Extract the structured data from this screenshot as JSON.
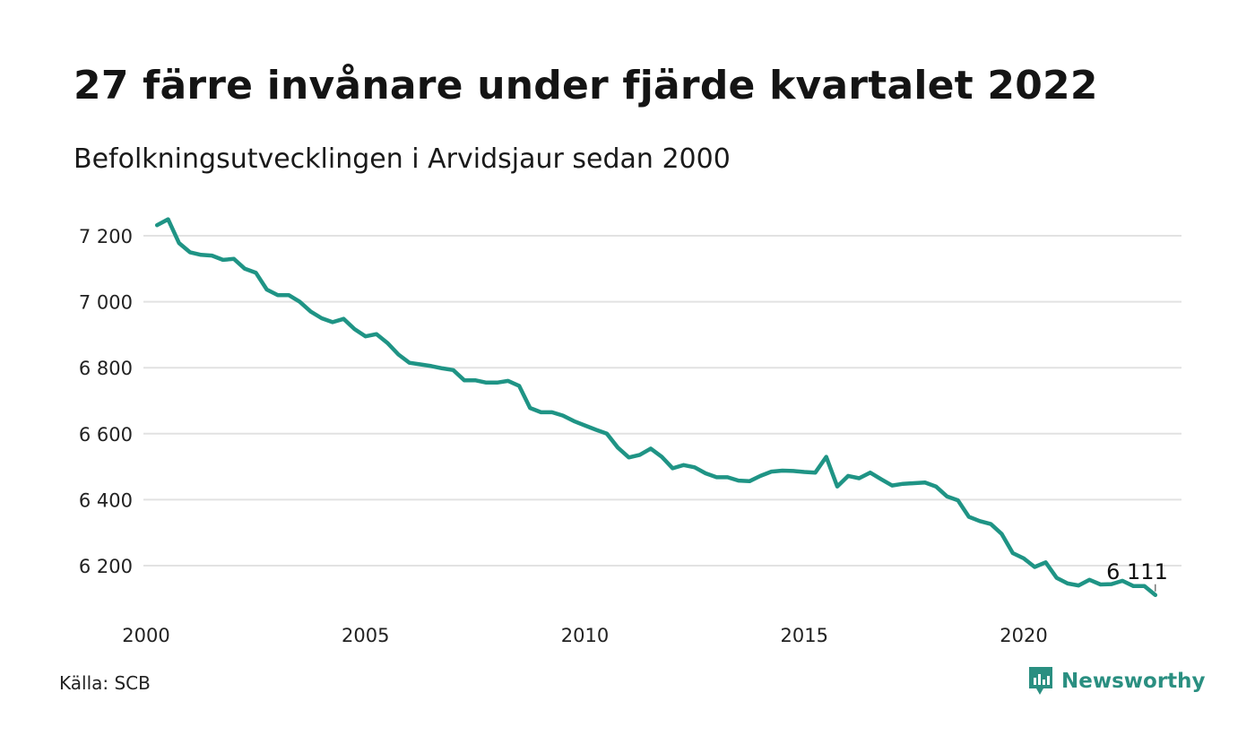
{
  "title": "27 färre invånare under fjärde kvartalet 2022",
  "subtitle": "Befolkningsutvecklingen i Arvidsjaur sedan 2000",
  "source": "Källa: SCB",
  "brand": {
    "name": "Newsworthy",
    "icon": "newsworthy-logo-icon",
    "color": "#2a8f81"
  },
  "colors": {
    "line": "#1f9485",
    "grid": "#e2e2e2"
  },
  "chart_data": {
    "type": "line",
    "title": "27 färre invånare under fjärde kvartalet 2022",
    "subtitle": "Befolkningsutvecklingen i Arvidsjaur sedan 2000",
    "xlabel": "",
    "ylabel": "",
    "xlim": [
      2000,
      2023
    ],
    "ylim": [
      6100,
      7250
    ],
    "x_ticks": [
      2000,
      2005,
      2010,
      2015,
      2020
    ],
    "x_tick_labels": [
      "2000",
      "2005",
      "2010",
      "2015",
      "2020"
    ],
    "y_ticks": [
      6200,
      6400,
      6600,
      6800,
      7000,
      7200
    ],
    "y_tick_labels": [
      "6 200",
      "6 400",
      "6 600",
      "6 800",
      "7 000",
      "7 200"
    ],
    "grid": true,
    "end_label": "6 111",
    "series": [
      {
        "x": [
          2000.25,
          2000.5,
          2000.75,
          2001.0,
          2001.25,
          2001.5,
          2001.75,
          2002.0,
          2002.25,
          2002.5,
          2002.75,
          2003.0,
          2003.25,
          2003.5,
          2003.75,
          2004.0,
          2004.25,
          2004.5,
          2004.75,
          2005.0,
          2005.25,
          2005.5,
          2005.75,
          2006.0,
          2006.25,
          2006.5,
          2006.75,
          2007.0,
          2007.25,
          2007.5,
          2007.75,
          2008.0,
          2008.25,
          2008.5,
          2008.75,
          2009.0,
          2009.25,
          2009.5,
          2009.75,
          2010.0,
          2010.25,
          2010.5,
          2010.75,
          2011.0,
          2011.25,
          2011.5,
          2011.75,
          2012.0,
          2012.25,
          2012.5,
          2012.75,
          2013.0,
          2013.25,
          2013.5,
          2013.75,
          2014.0,
          2014.25,
          2014.5,
          2014.75,
          2015.0,
          2015.25,
          2015.5,
          2015.75,
          2016.0,
          2016.25,
          2016.5,
          2016.75,
          2017.0,
          2017.25,
          2017.5,
          2017.75,
          2018.0,
          2018.25,
          2018.5,
          2018.75,
          2019.0,
          2019.25,
          2019.5,
          2019.75,
          2020.0,
          2020.25,
          2020.5,
          2020.75,
          2021.0,
          2021.25,
          2021.5,
          2021.75,
          2022.0,
          2022.25,
          2022.5,
          2022.75,
          2023.0
        ],
        "y": [
          7232,
          7250,
          7178,
          7150,
          7142,
          7140,
          7127,
          7130,
          7100,
          7088,
          7037,
          7020,
          7020,
          7000,
          6970,
          6950,
          6938,
          6948,
          6917,
          6895,
          6902,
          6875,
          6840,
          6815,
          6810,
          6805,
          6798,
          6793,
          6762,
          6762,
          6755,
          6755,
          6760,
          6745,
          6678,
          6665,
          6665,
          6655,
          6638,
          6625,
          6612,
          6600,
          6558,
          6528,
          6536,
          6555,
          6530,
          6495,
          6505,
          6498,
          6480,
          6468,
          6468,
          6458,
          6456,
          6472,
          6485,
          6488,
          6487,
          6484,
          6482,
          6530,
          6440,
          6472,
          6465,
          6482,
          6462,
          6443,
          6448,
          6450,
          6452,
          6440,
          6410,
          6398,
          6348,
          6335,
          6326,
          6296,
          6238,
          6222,
          6196,
          6210,
          6163,
          6146,
          6140,
          6157,
          6143,
          6144,
          6154,
          6138,
          6138,
          6111
        ]
      }
    ]
  }
}
